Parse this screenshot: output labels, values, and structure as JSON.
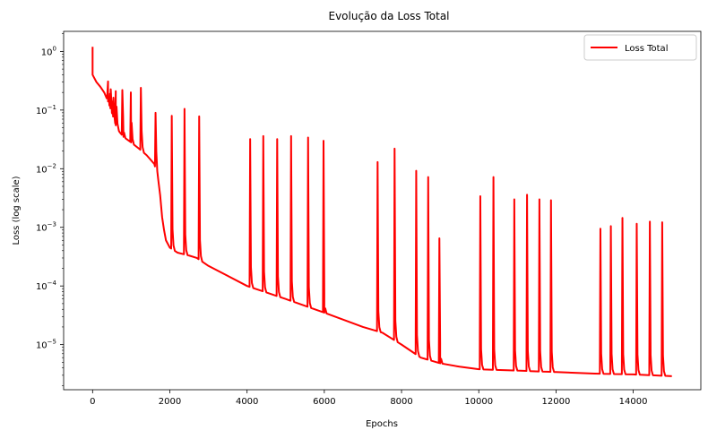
{
  "chart_data": {
    "type": "line",
    "title": "Evolução da Loss Total",
    "xlabel": "Epochs",
    "ylabel": "Loss (log scale)",
    "yscale": "log",
    "xlim": [
      -750,
      15750
    ],
    "ylim": [
      1.7e-06,
      2.2
    ],
    "grid": false,
    "legend_position": "top-right",
    "x_ticks": [
      0,
      2000,
      4000,
      6000,
      8000,
      10000,
      12000,
      14000
    ],
    "x_tick_labels": [
      "0",
      "2000",
      "4000",
      "6000",
      "8000",
      "10000",
      "12000",
      "14000"
    ],
    "y_ticks": [
      1e-05,
      0.0001,
      0.001,
      0.01,
      0.1,
      1
    ],
    "y_tick_labels": [
      {
        "base": "10",
        "exp": "−5"
      },
      {
        "base": "10",
        "exp": "−4"
      },
      {
        "base": "10",
        "exp": "−3"
      },
      {
        "base": "10",
        "exp": "−2"
      },
      {
        "base": "10",
        "exp": "−1"
      },
      {
        "base": "10",
        "exp": "0"
      }
    ],
    "series": [
      {
        "name": "Loss Total",
        "color": "#ff0000",
        "baseline": [
          [
            0,
            0.4
          ],
          [
            100,
            0.3
          ],
          [
            200,
            0.25
          ],
          [
            300,
            0.2
          ],
          [
            400,
            0.14
          ],
          [
            500,
            0.09
          ],
          [
            600,
            0.055
          ],
          [
            700,
            0.042
          ],
          [
            800,
            0.035
          ],
          [
            1000,
            0.028
          ],
          [
            1200,
            0.022
          ],
          [
            1400,
            0.017
          ],
          [
            1600,
            0.012
          ],
          [
            1700,
            0.0065
          ],
          [
            1750,
            0.0035
          ],
          [
            1800,
            0.0015
          ],
          [
            1850,
            0.0009
          ],
          [
            1900,
            0.0006
          ],
          [
            2000,
            0.00045
          ],
          [
            2200,
            0.00037
          ],
          [
            2500,
            0.00033
          ],
          [
            2700,
            0.0003
          ],
          [
            3000,
            0.00022
          ],
          [
            4000,
            0.0001
          ],
          [
            5000,
            6e-05
          ],
          [
            6000,
            3.5e-05
          ],
          [
            7000,
            2e-05
          ],
          [
            7500,
            1.6e-05
          ],
          [
            8000,
            1e-05
          ],
          [
            8500,
            6e-06
          ],
          [
            9000,
            4.8e-06
          ],
          [
            9500,
            4.2e-06
          ],
          [
            10000,
            3.8e-06
          ],
          [
            11000,
            3.6e-06
          ],
          [
            12000,
            3.4e-06
          ],
          [
            13000,
            3.2e-06
          ],
          [
            14000,
            3.1e-06
          ],
          [
            15000,
            2.9e-06
          ]
        ],
        "spikes": [
          [
            0,
            1.2
          ],
          [
            380,
            0.18
          ],
          [
            450,
            0.19
          ],
          [
            520,
            0.14
          ],
          [
            600,
            0.21
          ],
          [
            770,
            0.22
          ],
          [
            990,
            0.2
          ],
          [
            1250,
            0.24
          ],
          [
            1630,
            0.09
          ],
          [
            2050,
            0.08
          ],
          [
            2380,
            0.105
          ],
          [
            2760,
            0.078
          ],
          [
            4080,
            0.032
          ],
          [
            4420,
            0.036
          ],
          [
            4780,
            0.032
          ],
          [
            5140,
            0.036
          ],
          [
            5580,
            0.034
          ],
          [
            5980,
            0.03
          ],
          [
            7380,
            0.013
          ],
          [
            7820,
            0.022
          ],
          [
            8380,
            0.0092
          ],
          [
            8690,
            0.0072
          ],
          [
            8980,
            0.00065
          ],
          [
            10040,
            0.0034
          ],
          [
            10380,
            0.0072
          ],
          [
            10920,
            0.003
          ],
          [
            11250,
            0.0036
          ],
          [
            11570,
            0.003
          ],
          [
            11870,
            0.0029
          ],
          [
            13150,
            0.00095
          ],
          [
            13420,
            0.00105
          ],
          [
            13720,
            0.00145
          ],
          [
            14090,
            0.00115
          ],
          [
            14430,
            0.00125
          ],
          [
            14750,
            0.00122
          ]
        ]
      }
    ]
  }
}
